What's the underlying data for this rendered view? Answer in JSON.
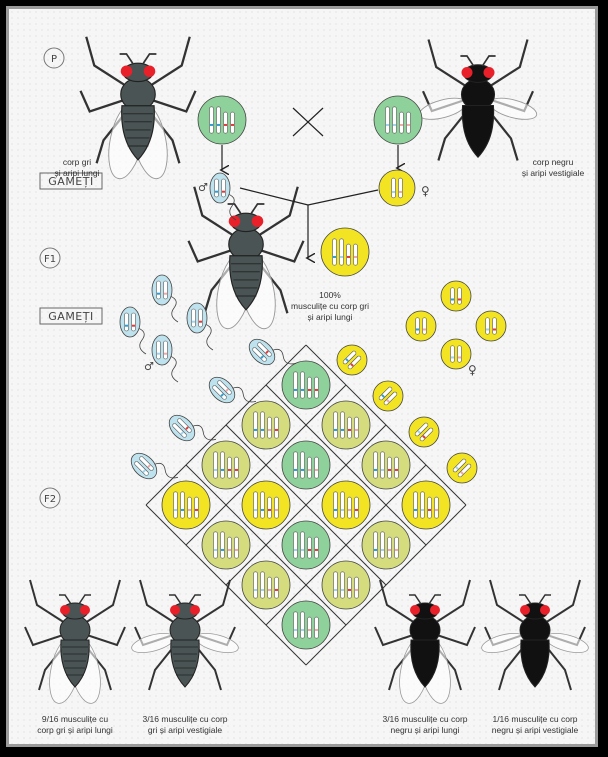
{
  "labels": {
    "p": "P",
    "f1": "F1",
    "f2": "F2",
    "gametes_1": "GAMEȚI",
    "gametes_2": "GAMEȚI",
    "male_symbol": "♂",
    "female_symbol": "♀",
    "cross_symbol": "×"
  },
  "parents": {
    "male": {
      "line1": "corp gri",
      "line2": "și aripi lungi",
      "body": "gray",
      "wings": "long"
    },
    "female": {
      "line1": "corp negru",
      "line2": "și aripi vestigiale",
      "body": "black",
      "wings": "vestigial"
    }
  },
  "f1": {
    "line1": "100%",
    "line2": "musculițe cu corp gri",
    "line3": "și aripi lungi"
  },
  "f2": [
    {
      "line1": "9/16 musculițe cu",
      "line2": "corp gri și aripi lungi",
      "body": "gray",
      "wings": "long"
    },
    {
      "line1": "3/16 musculițe cu corp",
      "line2": "gri și aripi vestigiale",
      "body": "gray",
      "wings": "vestigial"
    },
    {
      "line1": "3/16 musculițe cu corp",
      "line2": "negru și aripi lungi",
      "body": "black",
      "wings": "long"
    },
    {
      "line1": "1/16 musculițe cu corp",
      "line2": "negru și aripi vestigiale",
      "body": "black",
      "wings": "vestigial"
    }
  ],
  "colors": {
    "green_cell": "#8fd19a",
    "yellow_cell": "#f2e422",
    "olive_cell": "#d4dc7e",
    "sperm": "#bfe3ee",
    "dominant_allele_blue": "#2a9fd8",
    "recessive_allele_red": "#e8383a",
    "eye": "#e8202a",
    "gray_body": "#4a5454",
    "black_body": "#111111"
  }
}
